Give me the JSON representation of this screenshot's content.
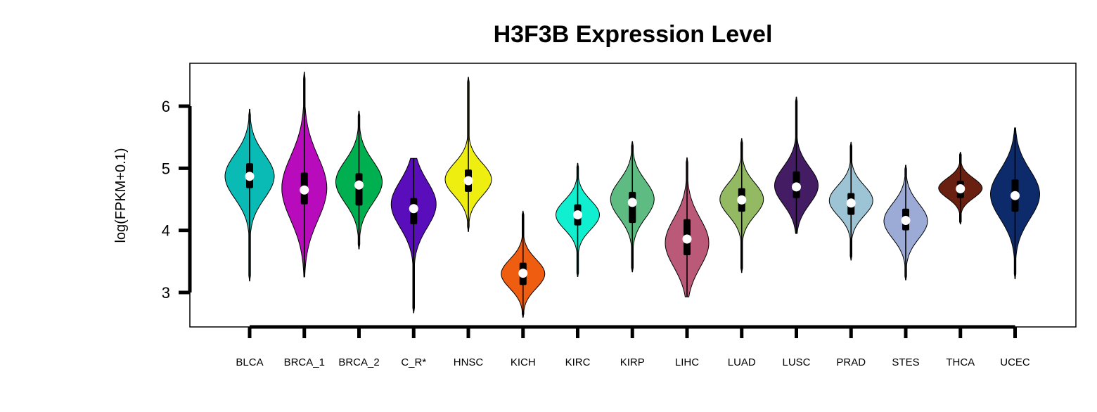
{
  "chart_data": {
    "type": "violin",
    "title": "H3F3B Expression Level",
    "xlabel": "",
    "ylabel": "log(FPKM+0.1)",
    "yticks": [
      3,
      4,
      5,
      6
    ],
    "ylim": [
      2.45,
      6.7
    ],
    "grid": false,
    "categories": [
      "BLCA",
      "BRCA_1",
      "BRCA_2",
      "C_R*",
      "HNSC",
      "KICH",
      "KIRC",
      "KIRP",
      "LIHC",
      "LUAD",
      "LUSC",
      "PRAD",
      "STES",
      "THCA",
      "UCEC"
    ],
    "colors": [
      "#0ABAB5",
      "#B80CBC",
      "#00B050",
      "#5A0DBB",
      "#EEEE10",
      "#EE5D10",
      "#10F0D0",
      "#5EBC82",
      "#BB5A78",
      "#94B963",
      "#441C64",
      "#9CC4D4",
      "#9CAAD6",
      "#6A2010",
      "#0D2B6B"
    ],
    "violins": [
      {
        "min": 3.18,
        "max": 5.95,
        "q1": 4.68,
        "median": 4.87,
        "q3": 5.08,
        "mode": 4.87,
        "spread": 0.38,
        "half_width": 35
      },
      {
        "min": 3.25,
        "max": 6.55,
        "q1": 4.42,
        "median": 4.65,
        "q3": 4.93,
        "mode": 4.68,
        "spread": 0.55,
        "half_width": 32
      },
      {
        "min": 3.7,
        "max": 5.92,
        "q1": 4.4,
        "median": 4.73,
        "q3": 4.92,
        "mode": 4.78,
        "spread": 0.36,
        "half_width": 33
      },
      {
        "min": 2.67,
        "max": 5.16,
        "q1": 4.1,
        "median": 4.35,
        "q3": 4.52,
        "mode": 4.42,
        "spread": 0.4,
        "half_width": 32
      },
      {
        "min": 3.98,
        "max": 6.47,
        "q1": 4.62,
        "median": 4.8,
        "q3": 4.98,
        "mode": 4.82,
        "spread": 0.28,
        "half_width": 33
      },
      {
        "min": 2.6,
        "max": 4.31,
        "q1": 3.12,
        "median": 3.31,
        "q3": 3.48,
        "mode": 3.3,
        "spread": 0.25,
        "half_width": 31
      },
      {
        "min": 3.25,
        "max": 5.08,
        "q1": 4.08,
        "median": 4.25,
        "q3": 4.42,
        "mode": 4.25,
        "spread": 0.25,
        "half_width": 31
      },
      {
        "min": 3.33,
        "max": 5.43,
        "q1": 4.12,
        "median": 4.45,
        "q3": 4.62,
        "mode": 4.5,
        "spread": 0.32,
        "half_width": 31
      },
      {
        "min": 2.93,
        "max": 5.17,
        "q1": 3.6,
        "median": 3.86,
        "q3": 4.18,
        "mode": 3.8,
        "spread": 0.42,
        "half_width": 31
      },
      {
        "min": 3.32,
        "max": 5.48,
        "q1": 4.3,
        "median": 4.49,
        "q3": 4.68,
        "mode": 4.5,
        "spread": 0.28,
        "half_width": 31
      },
      {
        "min": 3.95,
        "max": 6.15,
        "q1": 4.52,
        "median": 4.7,
        "q3": 4.95,
        "mode": 4.72,
        "spread": 0.32,
        "half_width": 31
      },
      {
        "min": 3.52,
        "max": 5.42,
        "q1": 4.25,
        "median": 4.44,
        "q3": 4.6,
        "mode": 4.48,
        "spread": 0.26,
        "half_width": 31
      },
      {
        "min": 3.2,
        "max": 5.05,
        "q1": 4.0,
        "median": 4.16,
        "q3": 4.35,
        "mode": 4.15,
        "spread": 0.3,
        "half_width": 31
      },
      {
        "min": 4.1,
        "max": 5.26,
        "q1": 4.52,
        "median": 4.67,
        "q3": 4.8,
        "mode": 4.68,
        "spread": 0.17,
        "half_width": 31
      },
      {
        "min": 3.22,
        "max": 5.65,
        "q1": 4.3,
        "median": 4.56,
        "q3": 4.82,
        "mode": 4.58,
        "spread": 0.42,
        "half_width": 35
      }
    ]
  }
}
